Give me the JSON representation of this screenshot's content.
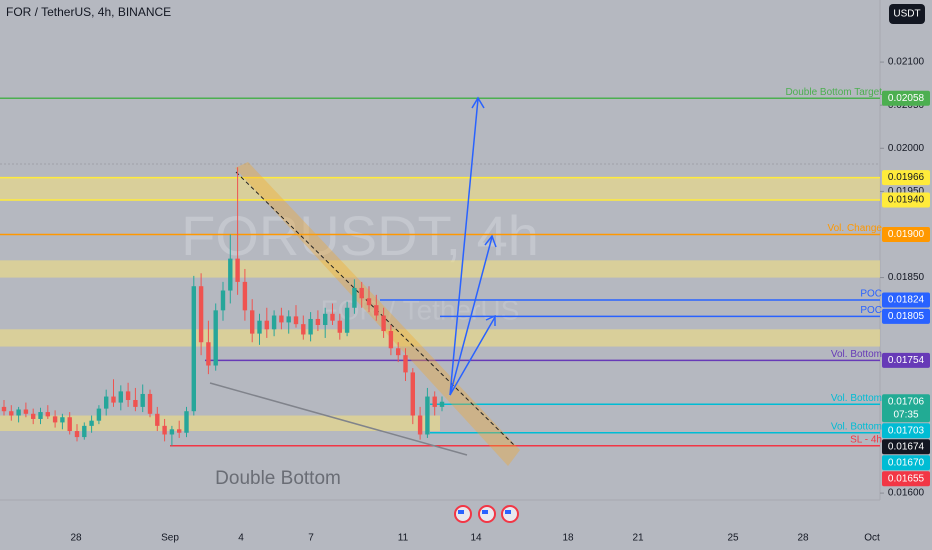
{
  "header": {
    "title": "FOR / TetherUS, 4h, BINANCE",
    "currency": "USDT",
    "watermark": "FORUSDT, 4h",
    "watermark_subtitle": "FOR / TetherUS"
  },
  "chart_data": {
    "type": "candlestick",
    "up_color": "#26a69a",
    "down_color": "#ef5350",
    "candles": [
      [
        0.017,
        0.01708,
        0.0169,
        0.01695
      ],
      [
        0.01695,
        0.01702,
        0.01684,
        0.0169
      ],
      [
        0.0169,
        0.017,
        0.01682,
        0.01697
      ],
      [
        0.01697,
        0.01705,
        0.01688,
        0.01692
      ],
      [
        0.01692,
        0.01698,
        0.0168,
        0.01686
      ],
      [
        0.01686,
        0.01699,
        0.0168,
        0.01694
      ],
      [
        0.01694,
        0.01702,
        0.01686,
        0.01689
      ],
      [
        0.01689,
        0.01696,
        0.01676,
        0.01682
      ],
      [
        0.01682,
        0.01692,
        0.01674,
        0.01688
      ],
      [
        0.01688,
        0.01694,
        0.01668,
        0.01672
      ],
      [
        0.01672,
        0.0168,
        0.0166,
        0.01665
      ],
      [
        0.01665,
        0.01682,
        0.01662,
        0.01678
      ],
      [
        0.01678,
        0.0169,
        0.0167,
        0.01684
      ],
      [
        0.01684,
        0.01702,
        0.0168,
        0.01698
      ],
      [
        0.01698,
        0.0172,
        0.0169,
        0.01712
      ],
      [
        0.01712,
        0.01732,
        0.017,
        0.01705
      ],
      [
        0.01705,
        0.01725,
        0.01696,
        0.01718
      ],
      [
        0.01718,
        0.01728,
        0.017,
        0.01708
      ],
      [
        0.01708,
        0.01722,
        0.01695,
        0.017
      ],
      [
        0.017,
        0.01726,
        0.01694,
        0.01715
      ],
      [
        0.01715,
        0.0172,
        0.01688,
        0.01692
      ],
      [
        0.01692,
        0.017,
        0.01672,
        0.01678
      ],
      [
        0.01678,
        0.01686,
        0.0166,
        0.01668
      ],
      [
        0.01668,
        0.01678,
        0.01655,
        0.01674
      ],
      [
        0.01674,
        0.01684,
        0.01664,
        0.0167
      ],
      [
        0.0167,
        0.017,
        0.01665,
        0.01695
      ],
      [
        0.01695,
        0.01852,
        0.0169,
        0.0184
      ],
      [
        0.0184,
        0.01855,
        0.0176,
        0.01775
      ],
      [
        0.01775,
        0.018,
        0.01738,
        0.01748
      ],
      [
        0.01748,
        0.0182,
        0.01742,
        0.01812
      ],
      [
        0.01812,
        0.01845,
        0.018,
        0.01835
      ],
      [
        0.01835,
        0.019,
        0.0182,
        0.01872
      ],
      [
        0.01872,
        0.01978,
        0.0183,
        0.01845
      ],
      [
        0.01845,
        0.0186,
        0.018,
        0.01812
      ],
      [
        0.01812,
        0.01825,
        0.01775,
        0.01785
      ],
      [
        0.01785,
        0.01808,
        0.01772,
        0.018
      ],
      [
        0.018,
        0.01815,
        0.0178,
        0.0179
      ],
      [
        0.0179,
        0.01812,
        0.01782,
        0.01806
      ],
      [
        0.01806,
        0.01815,
        0.0179,
        0.01798
      ],
      [
        0.01798,
        0.01812,
        0.01785,
        0.01805
      ],
      [
        0.01805,
        0.01818,
        0.01792,
        0.01796
      ],
      [
        0.01796,
        0.01806,
        0.01778,
        0.01784
      ],
      [
        0.01784,
        0.0181,
        0.01776,
        0.01802
      ],
      [
        0.01802,
        0.01812,
        0.01788,
        0.01795
      ],
      [
        0.01795,
        0.01815,
        0.0178,
        0.01808
      ],
      [
        0.01808,
        0.0182,
        0.01795,
        0.018
      ],
      [
        0.018,
        0.01808,
        0.01778,
        0.01786
      ],
      [
        0.01786,
        0.01822,
        0.01782,
        0.01815
      ],
      [
        0.01815,
        0.01848,
        0.01808,
        0.01838
      ],
      [
        0.01838,
        0.01845,
        0.01815,
        0.01826
      ],
      [
        0.01826,
        0.0184,
        0.0181,
        0.01818
      ],
      [
        0.01818,
        0.0183,
        0.018,
        0.01806
      ],
      [
        0.01806,
        0.01815,
        0.0178,
        0.01788
      ],
      [
        0.01788,
        0.01795,
        0.0176,
        0.01768
      ],
      [
        0.01768,
        0.01775,
        0.01752,
        0.0176
      ],
      [
        0.0176,
        0.01768,
        0.0173,
        0.0174
      ],
      [
        0.0174,
        0.01745,
        0.0168,
        0.0169
      ],
      [
        0.0169,
        0.017,
        0.01662,
        0.01668
      ],
      [
        0.01668,
        0.01722,
        0.01664,
        0.01712
      ],
      [
        0.01712,
        0.01718,
        0.0169,
        0.017
      ],
      [
        0.017,
        0.01712,
        0.01695,
        0.01706
      ]
    ],
    "ylim": [
      0.01592,
      0.02172
    ],
    "yticks": [
      {
        "value": 0.021,
        "label": "0.02100"
      },
      {
        "value": 0.0205,
        "label": "0.02050"
      },
      {
        "value": 0.02,
        "label": "0.02000"
      },
      {
        "value": 0.0195,
        "label": "0.01950"
      },
      {
        "value": 0.0185,
        "label": "0.01850"
      },
      {
        "value": 0.016,
        "label": "0.01600"
      }
    ],
    "x_labels": [
      "28",
      "Sep",
      "4",
      "7",
      "11",
      "14",
      "18",
      "21",
      "25",
      "28",
      "Oct"
    ],
    "zones": [
      [
        0.01966,
        0.0194
      ],
      [
        0.0187,
        0.0185
      ],
      [
        0.0179,
        0.0177
      ],
      [
        0.0169,
        0.01672
      ]
    ],
    "zone_color": "#f5e27a",
    "levels": [
      {
        "name": "Double Bottom Target",
        "value": 0.02058,
        "value_label": "0.02058",
        "color": "#4caf50"
      },
      {
        "value": 0.01966,
        "value_label": "0.01966",
        "color": "#ffeb3b"
      },
      {
        "value": 0.0194,
        "value_label": "0.01940",
        "color": "#ffeb3b"
      },
      {
        "name": "Vol. Change",
        "value": 0.019,
        "value_label": "0.01900",
        "color": "#ff9800"
      },
      {
        "name": "POC",
        "value": 0.01824,
        "value_label": "0.01824",
        "color": "#2962ff"
      },
      {
        "name": "POC",
        "value": 0.01805,
        "value_label": "0.01805",
        "color": "#2962ff"
      },
      {
        "name": "Vol. Bottom",
        "value": 0.01754,
        "value_label": "0.01754",
        "color": "#673ab7"
      },
      {
        "value": 0.01706,
        "value_label": "0.01706",
        "color": "#22ab94",
        "countdown": "07:35"
      },
      {
        "name": "Vol. Bottom",
        "value": 0.01703,
        "value_label": "0.01703",
        "color": "#00bcd4"
      },
      {
        "value": 0.01674,
        "value_label": "0.01674",
        "color": "#131722"
      },
      {
        "name": "Vol. Bottom",
        "value": 0.0167,
        "value_label": "0.01670",
        "color": "#00bcd4"
      },
      {
        "name": "SL - 4h",
        "value": 0.01655,
        "value_label": "0.01655",
        "color": "#f23645"
      }
    ],
    "annotation": "Double Bottom"
  }
}
